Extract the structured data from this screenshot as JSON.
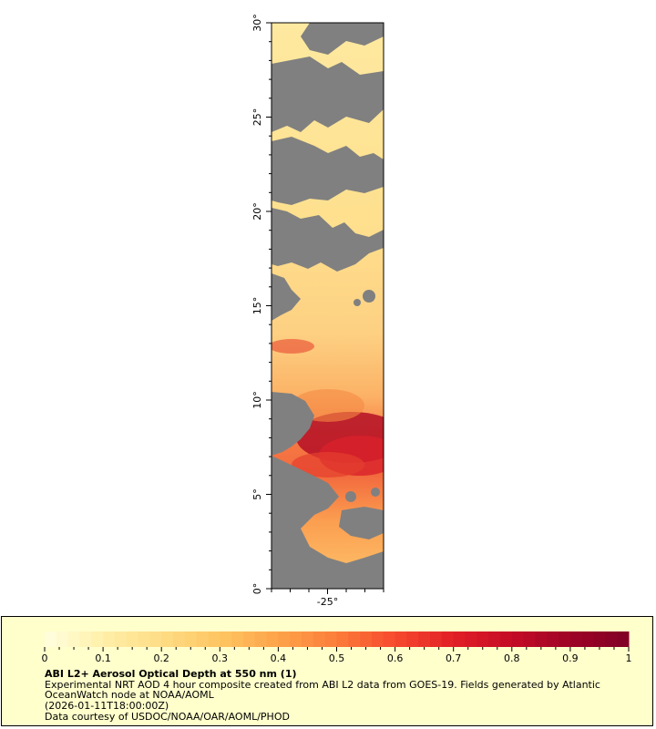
{
  "map": {
    "lat_labels": [
      "0°",
      "5°",
      "10°",
      "15°",
      "20°",
      "25°",
      "30°"
    ],
    "lat_values": [
      0,
      5,
      10,
      15,
      20,
      25,
      30
    ],
    "lon_labels": [
      "-25°"
    ],
    "lon_values": [
      -25
    ],
    "lat_range": [
      0,
      30
    ],
    "lon_range": [
      -28,
      -22
    ],
    "colors": {
      "land_or_nodata": "#808080",
      "frame": "#000000"
    }
  },
  "legend": {
    "title": "ABI L2+ Aerosol Optical Depth at 550 nm (1)",
    "description": "Experimental NRT AOD 4 hour composite created from ABI L2 data from GOES-19. Fields generated by Atlantic OceanWatch node at NOAA/AOML",
    "time": "(2026-01-11T18:00:00Z)",
    "credit": "Data courtesy of USDOC/NOAA/OAR/AOML/PHOD",
    "tick_labels": [
      "0",
      "0.1",
      "0.2",
      "0.3",
      "0.4",
      "0.5",
      "0.6",
      "0.7",
      "0.8",
      "0.9",
      "1"
    ],
    "range": [
      0,
      1
    ],
    "colorscale": [
      "#ffffe0",
      "#ffefa8",
      "#fedc85",
      "#fec561",
      "#fda34a",
      "#fc7d3a",
      "#f64a2e",
      "#e21f26",
      "#c40b26",
      "#9e0326",
      "#800026"
    ],
    "background_color": "#ffffcc"
  }
}
